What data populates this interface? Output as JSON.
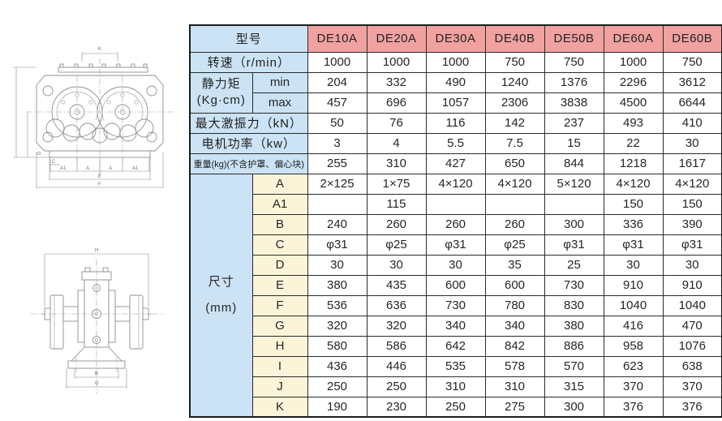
{
  "drawings": {
    "top_view": {
      "dim_top": "K",
      "dim_left": "D",
      "dim_bottom": [
        "C",
        "A1",
        "A",
        "A",
        "A1",
        "E",
        "F"
      ]
    },
    "side_view": {
      "dim_top": "H",
      "dim_bottom": [
        "B",
        "G"
      ]
    }
  },
  "colors": {
    "header_blue": "#cbe3f4",
    "model_pink": "#f0a1a0",
    "dim_cream": "#fcf4d8",
    "border": "#2b2b2b"
  },
  "table": {
    "models_label": "型号",
    "models": [
      "DE10A",
      "DE20A",
      "DE30A",
      "DE40B",
      "DE50B",
      "DE60A",
      "DE60B"
    ],
    "speed": {
      "label": "转速（r/min）",
      "values": [
        "1000",
        "1000",
        "1000",
        "750",
        "750",
        "1000",
        "750"
      ]
    },
    "static_moment": {
      "label": "静力矩",
      "unit": "(Kg·cm)",
      "min": {
        "label": "min",
        "values": [
          "204",
          "332",
          "490",
          "1240",
          "1376",
          "2296",
          "3612"
        ]
      },
      "max": {
        "label": "max",
        "values": [
          "457",
          "696",
          "1057",
          "2306",
          "3838",
          "4500",
          "6644"
        ]
      }
    },
    "force": {
      "label": "最大激振力（kN）",
      "values": [
        "50",
        "76",
        "116",
        "142",
        "237",
        "493",
        "410"
      ]
    },
    "power": {
      "label": "电机功率（kw）",
      "values": [
        "3",
        "4",
        "5.5",
        "7.5",
        "15",
        "22",
        "30"
      ]
    },
    "weight": {
      "label": "重量(kg)(不含护罩、偏心块)",
      "values": [
        "255",
        "310",
        "427",
        "650",
        "844",
        "1218",
        "1617"
      ]
    },
    "dimensions": {
      "label": "尺寸",
      "unit": "(mm)",
      "rows": [
        {
          "label": "A",
          "values": [
            "2×125",
            "1×75",
            "4×120",
            "4×120",
            "5×120",
            "4×120",
            "4×120"
          ]
        },
        {
          "label": "A1",
          "values": [
            "",
            "115",
            "",
            "",
            "",
            "150",
            "150"
          ]
        },
        {
          "label": "B",
          "values": [
            "240",
            "260",
            "260",
            "260",
            "300",
            "336",
            "390"
          ]
        },
        {
          "label": "C",
          "values": [
            "φ31",
            "φ25",
            "φ31",
            "φ25",
            "φ31",
            "φ31",
            "φ31"
          ]
        },
        {
          "label": "D",
          "values": [
            "30",
            "30",
            "30",
            "35",
            "25",
            "30",
            "30"
          ]
        },
        {
          "label": "E",
          "values": [
            "380",
            "435",
            "600",
            "600",
            "730",
            "910",
            "910"
          ]
        },
        {
          "label": "F",
          "values": [
            "536",
            "636",
            "730",
            "780",
            "830",
            "1040",
            "1040"
          ]
        },
        {
          "label": "G",
          "values": [
            "320",
            "320",
            "340",
            "340",
            "380",
            "416",
            "470"
          ]
        },
        {
          "label": "H",
          "values": [
            "580",
            "586",
            "642",
            "842",
            "886",
            "958",
            "1076"
          ]
        },
        {
          "label": "I",
          "values": [
            "436",
            "446",
            "535",
            "578",
            "570",
            "623",
            "638"
          ]
        },
        {
          "label": "J",
          "values": [
            "250",
            "250",
            "310",
            "310",
            "315",
            "370",
            "370"
          ]
        },
        {
          "label": "K",
          "values": [
            "190",
            "230",
            "250",
            "275",
            "300",
            "376",
            "376"
          ]
        }
      ]
    }
  }
}
